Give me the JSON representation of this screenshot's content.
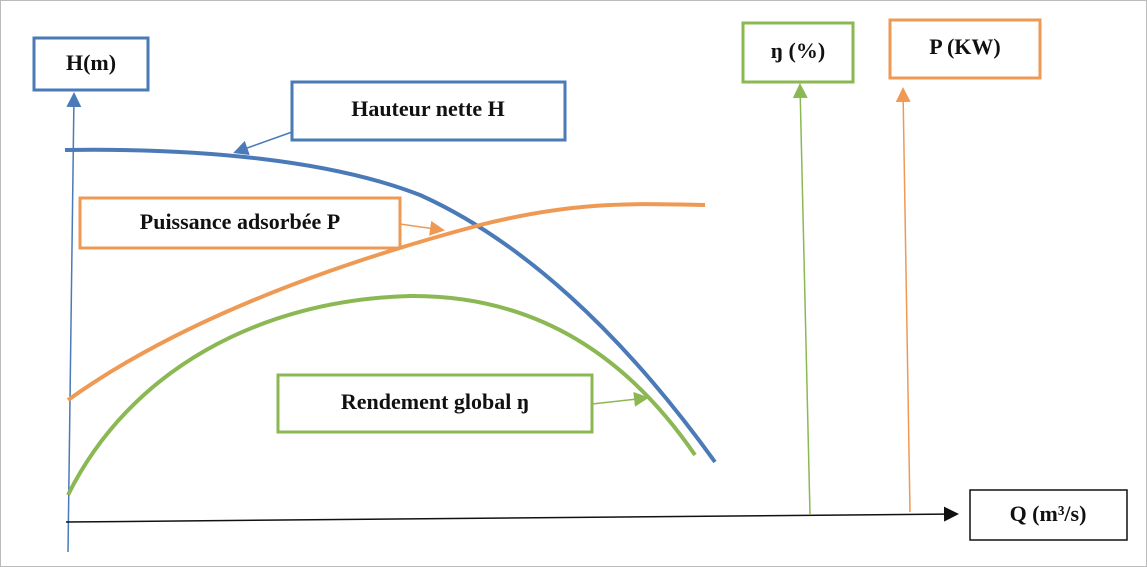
{
  "labels": {
    "h_axis": "H(m)",
    "hauteur": "Hauteur nette H",
    "puissance": "Puissance adsorbée P",
    "rendement": "Rendement global ŋ",
    "eta_axis": "ŋ (%)",
    "p_axis": "P (KW)",
    "q_axis": "Q (m³/s)"
  }
}
